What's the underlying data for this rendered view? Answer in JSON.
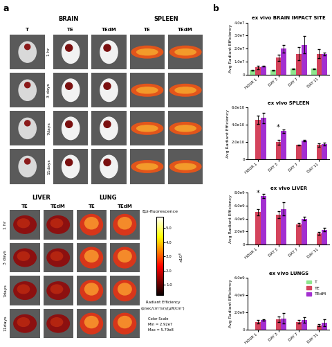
{
  "panel_a": {
    "label": "a",
    "upper_grid": {
      "sections": [
        {
          "name": "BRAIN",
          "columns": [
            "T",
            "TE",
            "TEdM"
          ]
        },
        {
          "name": "SPLEEN",
          "columns": [
            "TE",
            "TEdM"
          ]
        }
      ],
      "rows": [
        "1 hr",
        "3 days",
        "7days",
        "11days"
      ]
    },
    "lower_grid": {
      "sections": [
        {
          "name": "LIVER",
          "columns": [
            "TE",
            "TEdM"
          ]
        },
        {
          "name": "LUNG",
          "columns": [
            "TE",
            "TEdM"
          ]
        }
      ],
      "rows": [
        "1 hr",
        "3 days",
        "7days",
        "11days"
      ]
    },
    "colorbar": {
      "title": "Epi-fluorescence",
      "multiplier": "x10⁸",
      "clim": [
        0.292,
        5.79
      ],
      "ticks": [
        {
          "value": 1,
          "label": "1.0"
        },
        {
          "value": 2,
          "label": "2.0"
        },
        {
          "value": 3,
          "label": "3.0"
        },
        {
          "value": 4,
          "label": "4.0"
        },
        {
          "value": 5,
          "label": "5.0"
        }
      ],
      "label": "Radiant Efficiency",
      "units": "(p/sec/cm²/sr)/(µW/cm²)",
      "scale_lines": [
        "Color Scale",
        "Min = 2.92e7",
        "Max = 5.79e8"
      ]
    }
  },
  "panel_b_label": "b",
  "chart_data": [
    {
      "type": "bar",
      "title": "ex vivo BRAIN IMPACT SITE",
      "y_label": "Avg Radiant Efficiency",
      "categories": [
        "HOUR 1",
        "DAY 3",
        "DAY 7",
        "DAY 11"
      ],
      "series": [
        {
          "name": "T",
          "color": "#8ee68e",
          "values": [
            3500000,
            3500000,
            4500000,
            4500000
          ],
          "errors": [
            300000,
            300000,
            300000,
            300000
          ]
        },
        {
          "name": "TE",
          "color": "#d4435c",
          "values": [
            5500000,
            13000000,
            16000000,
            16000000
          ],
          "errors": [
            1500000,
            2500000,
            5000000,
            3500000
          ]
        },
        {
          "name": "TEdM",
          "color": "#a32fd0",
          "values": [
            6500000,
            20000000,
            23000000,
            16000000
          ],
          "errors": [
            500000,
            3000000,
            6500000,
            1000000
          ]
        }
      ],
      "ylim": [
        0,
        40000000
      ],
      "yticks": [
        {
          "value": 0,
          "label": "0"
        },
        {
          "value": 10000000,
          "label": "1.0e7"
        },
        {
          "value": 20000000,
          "label": "2.0e7"
        },
        {
          "value": 30000000,
          "label": "3.0e7"
        },
        {
          "value": 40000000,
          "label": "4.0e7"
        }
      ]
    },
    {
      "type": "bar",
      "title": "ex vivo SPLEEN",
      "y_label": "Avg Radiant Efficiency",
      "categories": [
        "HOUR 1",
        "DAY 3",
        "DAY 7",
        "DAY 11"
      ],
      "series": [
        {
          "name": "T",
          "color": "#8ee68e",
          "values": [
            null,
            null,
            null,
            null
          ],
          "errors": [
            null,
            null,
            null,
            null
          ]
        },
        {
          "name": "TE",
          "color": "#d4435c",
          "values": [
            46000000000,
            20000000000,
            17000000000,
            17000000000
          ],
          "errors": [
            5000000000,
            2500000000,
            500000000,
            2000000000
          ]
        },
        {
          "name": "TEdM",
          "color": "#a32fd0",
          "values": [
            48000000000,
            33000000000,
            22000000000,
            18000000000
          ],
          "errors": [
            6000000000,
            2000000000,
            500000000,
            1500000000
          ]
        }
      ],
      "annotations": [
        {
          "category": "DAY 3",
          "text": "*",
          "value": 37000000000
        }
      ],
      "ylim": [
        0,
        60000000000
      ],
      "yticks": [
        {
          "value": 0,
          "label": "0"
        },
        {
          "value": 20000000000,
          "label": "2.0e10"
        },
        {
          "value": 40000000000,
          "label": "4.0e10"
        },
        {
          "value": 60000000000,
          "label": "6.0e10"
        }
      ]
    },
    {
      "type": "bar",
      "title": "ex vivo LIVER",
      "y_label": "Avg Radiant Efficiency",
      "categories": [
        "HOUR 1",
        "DAY 3",
        "DAY 7",
        "DAY 11"
      ],
      "series": [
        {
          "name": "T",
          "color": "#8ee68e",
          "values": [
            null,
            null,
            null,
            null
          ],
          "errors": [
            null,
            null,
            null,
            null
          ]
        },
        {
          "name": "TE",
          "color": "#d4435c",
          "values": [
            5000000000,
            4600000000,
            3100000000,
            1700000000
          ],
          "errors": [
            500000000,
            500000000,
            200000000,
            200000000
          ]
        },
        {
          "name": "TEdM",
          "color": "#a32fd0",
          "values": [
            7500000000,
            5500000000,
            4000000000,
            2300000000
          ],
          "errors": [
            300000000,
            1000000000,
            300000000,
            300000000
          ]
        }
      ],
      "annotations": [
        {
          "category": "HOUR 1",
          "text": "*",
          "value": 7900000000
        }
      ],
      "ylim": [
        0,
        8000000000
      ],
      "yticks": [
        {
          "value": 0,
          "label": "0"
        },
        {
          "value": 2000000000,
          "label": "2.0e9"
        },
        {
          "value": 4000000000,
          "label": "4.0e9"
        },
        {
          "value": 6000000000,
          "label": "6.0e9"
        },
        {
          "value": 8000000000,
          "label": "8.0e9"
        }
      ]
    },
    {
      "type": "bar",
      "title": "ex vivo LUNGS",
      "y_label": "Avg Radiant Efficiency",
      "categories": [
        "HOUR 1",
        "DAY 3",
        "DAY 7",
        "DAY 11"
      ],
      "series": [
        {
          "name": "T",
          "color": "#8ee68e",
          "values": [
            null,
            null,
            null,
            null
          ],
          "errors": [
            null,
            null,
            null,
            null
          ]
        },
        {
          "name": "TE",
          "color": "#d4435c",
          "values": [
            900000000,
            1200000000,
            900000000,
            500000000
          ],
          "errors": [
            200000000,
            300000000,
            200000000,
            100000000
          ]
        },
        {
          "name": "TEdM",
          "color": "#a32fd0",
          "values": [
            1100000000,
            1300000000,
            1100000000,
            800000000
          ],
          "errors": [
            100000000,
            600000000,
            300000000,
            400000000
          ]
        }
      ],
      "legend": "upper right",
      "ylim": [
        0,
        6000000000
      ],
      "yticks": [
        {
          "value": 0,
          "label": "0"
        },
        {
          "value": 2000000000,
          "label": "2.0e9"
        },
        {
          "value": 4000000000,
          "label": "4.0e9"
        },
        {
          "value": 6000000000,
          "label": "6.0e9"
        }
      ]
    }
  ]
}
